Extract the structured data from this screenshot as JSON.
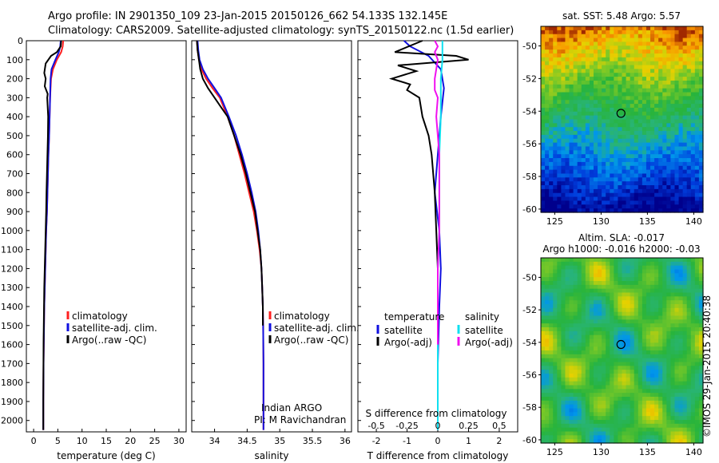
{
  "header": {
    "title_line1": "Argo profile: IN 2901350_109 23-Jan-2015 20150126_662 54.133S 132.145E",
    "title_line2": "Climatology: CARS2009. Satellite-adjusted climatology: synTS_20150122.nc (1.5d earlier)"
  },
  "colors": {
    "climatology": "#ff2020",
    "satellite": "#1010e0",
    "argo": "#000000",
    "sat_salinity": "#10e0f0",
    "argo_salinity": "#f010f0"
  },
  "chart_data": [
    {
      "id": "temperature",
      "type": "line",
      "xlabel": "temperature (deg C)",
      "xlim": [
        -1.5,
        31.5
      ],
      "ylim": [
        2060,
        0
      ],
      "xticks": [
        "0",
        "5",
        "10",
        "15",
        "20",
        "25",
        "30"
      ],
      "yticks": [
        "0",
        "100",
        "200",
        "300",
        "400",
        "500",
        "600",
        "700",
        "800",
        "900",
        "1000",
        "1100",
        "1200",
        "1300",
        "1400",
        "1500",
        "1600",
        "1700",
        "1800",
        "1900",
        "2000"
      ],
      "legend": [
        "climatology",
        "satellite-adj. clim.",
        "Argo(..raw -QC)"
      ],
      "series": [
        {
          "name": "climatology",
          "x": [
            6.1,
            6.0,
            5.7,
            4.8,
            4.0,
            3.6,
            3.4,
            3.3,
            3.2,
            3.05,
            2.95,
            2.85,
            2.75,
            2.6,
            2.5,
            2.4,
            2.3,
            2.2,
            2.15,
            2.1,
            2.05,
            2.0,
            2.0
          ],
          "y": [
            0,
            30,
            60,
            100,
            150,
            200,
            300,
            400,
            500,
            600,
            700,
            800,
            900,
            1000,
            1100,
            1200,
            1300,
            1400,
            1500,
            1600,
            1700,
            1900,
            2050
          ]
        },
        {
          "name": "satellite-adj. clim.",
          "x": [
            5.6,
            5.5,
            5.2,
            4.5,
            3.7,
            3.5,
            3.4,
            3.3,
            3.2,
            3.05,
            2.95,
            2.85,
            2.75,
            2.6,
            2.5,
            2.4,
            2.3,
            2.2,
            2.15,
            2.1,
            2.05,
            2.0,
            2.0
          ],
          "y": [
            0,
            30,
            60,
            100,
            150,
            200,
            300,
            400,
            500,
            600,
            700,
            800,
            900,
            1000,
            1100,
            1200,
            1300,
            1400,
            1500,
            1600,
            1700,
            1900,
            2050
          ]
        },
        {
          "name": "Argo(..raw -QC)",
          "x": [
            5.7,
            5.6,
            4.8,
            3.6,
            2.5,
            2.2,
            2.5,
            2.3,
            2.9,
            2.8,
            3.0,
            2.95,
            2.85,
            2.75,
            2.65,
            2.6,
            2.5,
            2.4,
            2.3,
            2.2,
            2.15,
            2.1,
            2.05,
            2.0,
            2.0
          ],
          "y": [
            0,
            30,
            60,
            80,
            120,
            170,
            200,
            240,
            280,
            300,
            400,
            500,
            600,
            700,
            800,
            900,
            1000,
            1100,
            1200,
            1300,
            1400,
            1500,
            1600,
            1900,
            2050
          ]
        }
      ]
    },
    {
      "id": "salinity",
      "type": "line",
      "xlabel": "salinity",
      "xlim": [
        33.65,
        36.1
      ],
      "ylim": [
        2060,
        0
      ],
      "xticks": [
        "34",
        "34.5",
        "35",
        "35.5",
        "36"
      ],
      "legend": [
        "climatology",
        "satellite-adj. clim.",
        "Argo(..raw -QC)"
      ],
      "annotation": [
        "Indian ARGO",
        "PI: M Ravichandran"
      ],
      "series": [
        {
          "name": "climatology",
          "x": [
            33.73,
            33.74,
            33.76,
            33.8,
            33.87,
            33.97,
            34.08,
            34.2,
            34.3,
            34.38,
            34.46,
            34.53,
            34.6,
            34.65,
            34.69,
            34.72,
            34.73,
            34.74,
            34.745,
            34.75,
            34.75
          ],
          "y": [
            0,
            50,
            100,
            150,
            200,
            250,
            300,
            400,
            500,
            600,
            700,
            800,
            900,
            1000,
            1100,
            1200,
            1300,
            1400,
            1500,
            1700,
            2050
          ]
        },
        {
          "name": "satellite-adj. clim.",
          "x": [
            33.74,
            33.75,
            33.77,
            33.82,
            33.9,
            34.0,
            34.1,
            34.22,
            34.33,
            34.42,
            34.5,
            34.57,
            34.63,
            34.67,
            34.7,
            34.72,
            34.73,
            34.74,
            34.745,
            34.75,
            34.75
          ],
          "y": [
            0,
            50,
            100,
            150,
            200,
            250,
            300,
            400,
            500,
            600,
            700,
            800,
            900,
            1000,
            1100,
            1200,
            1300,
            1400,
            1500,
            1700,
            2050
          ]
        },
        {
          "name": "Argo(..raw -QC)",
          "x": [
            33.73,
            33.74,
            33.76,
            33.78,
            33.82,
            33.9,
            34.0,
            34.1,
            34.2,
            34.3,
            34.4,
            34.48,
            34.55,
            34.62,
            34.66,
            34.7,
            34.72,
            34.73,
            34.74,
            34.74
          ],
          "y": [
            0,
            50,
            100,
            150,
            200,
            250,
            300,
            350,
            400,
            500,
            600,
            700,
            800,
            900,
            1000,
            1100,
            1200,
            1300,
            1400,
            1500
          ]
        }
      ]
    },
    {
      "id": "difference",
      "type": "line",
      "xlabel": "T difference from climatology",
      "xlabel2": "S difference from climatology",
      "xlim": [
        -2.6,
        2.6
      ],
      "ylim": [
        2060,
        0
      ],
      "xticks": [
        "-2",
        "-1",
        "0",
        "1",
        "2"
      ],
      "xticks2": [
        "-0.5",
        "-0.25",
        "0",
        "0.25",
        "0.5"
      ],
      "legend_titles": [
        "temperature",
        "salinity"
      ],
      "legend": [
        "satellite",
        "Argo(-adj)",
        "satellite",
        "Argo(-adj)"
      ],
      "series": [
        {
          "name": "satellite",
          "quantity": "temperature",
          "x": [
            -1.1,
            -0.9,
            -0.3,
            0.1,
            0.2,
            0.1,
            0.0,
            -0.1,
            0.05,
            0.1,
            0.05,
            0.0,
            0.0
          ],
          "y": [
            0,
            30,
            80,
            150,
            250,
            400,
            600,
            800,
            1000,
            1200,
            1400,
            1700,
            2050
          ]
        },
        {
          "name": "Argo(-adj)",
          "quantity": "temperature",
          "x": [
            -0.5,
            -1.4,
            0.6,
            1.0,
            -1.3,
            -0.7,
            -1.5,
            -0.9,
            -1.0,
            -0.6,
            -0.5,
            -0.3,
            -0.2,
            -0.1,
            -0.05,
            0.0,
            0.0,
            0.0
          ],
          "y": [
            0,
            60,
            80,
            100,
            130,
            160,
            200,
            230,
            260,
            300,
            400,
            500,
            600,
            800,
            1000,
            1200,
            1500,
            1600
          ]
        },
        {
          "name": "satellite",
          "quantity": "salinity",
          "x": [
            0.15,
            0.15,
            0.1,
            0.1,
            0.1,
            0.05,
            0.05,
            0.0,
            0.0,
            0.0
          ],
          "y": [
            0,
            100,
            200,
            300,
            400,
            600,
            1000,
            1200,
            1500,
            2050
          ]
        },
        {
          "name": "Argo(-adj)",
          "quantity": "salinity",
          "x": [
            -0.1,
            0.0,
            -0.1,
            0.0,
            -0.05,
            -0.1,
            -0.1,
            0.0,
            -0.05,
            0.0,
            0.05,
            0.05,
            0.05,
            0.0,
            0.0
          ],
          "y": [
            0,
            30,
            60,
            100,
            150,
            200,
            260,
            300,
            400,
            500,
            600,
            800,
            1000,
            1200,
            1600
          ]
        }
      ]
    },
    {
      "id": "sst-map",
      "type": "heatmap",
      "title": "sat. SST: 5.48 Argo: 5.57",
      "xlim": [
        123.5,
        141
      ],
      "ylim": [
        -60.2,
        -48.8
      ],
      "xticks": [
        "125",
        "130",
        "135",
        "140"
      ],
      "yticks": [
        "-50",
        "-52",
        "-54",
        "-56",
        "-58",
        "-60"
      ],
      "marker": {
        "lon": 132.145,
        "lat": -54.133
      }
    },
    {
      "id": "sla-map",
      "type": "heatmap",
      "title_line1": "Altim. SLA: -0.017",
      "title_line2": "Argo h1000: -0.016 h2000: -0.03",
      "xlim": [
        123.5,
        141
      ],
      "ylim": [
        -60.2,
        -48.8
      ],
      "xticks": [
        "125",
        "130",
        "135",
        "140"
      ],
      "yticks": [
        "-50",
        "-52",
        "-54",
        "-56",
        "-58",
        "-60"
      ],
      "marker": {
        "lon": 132.145,
        "lat": -54.133
      }
    }
  ],
  "footer": {
    "timestamp": "©IMOS 29-Jan-2015 20:40:38"
  }
}
